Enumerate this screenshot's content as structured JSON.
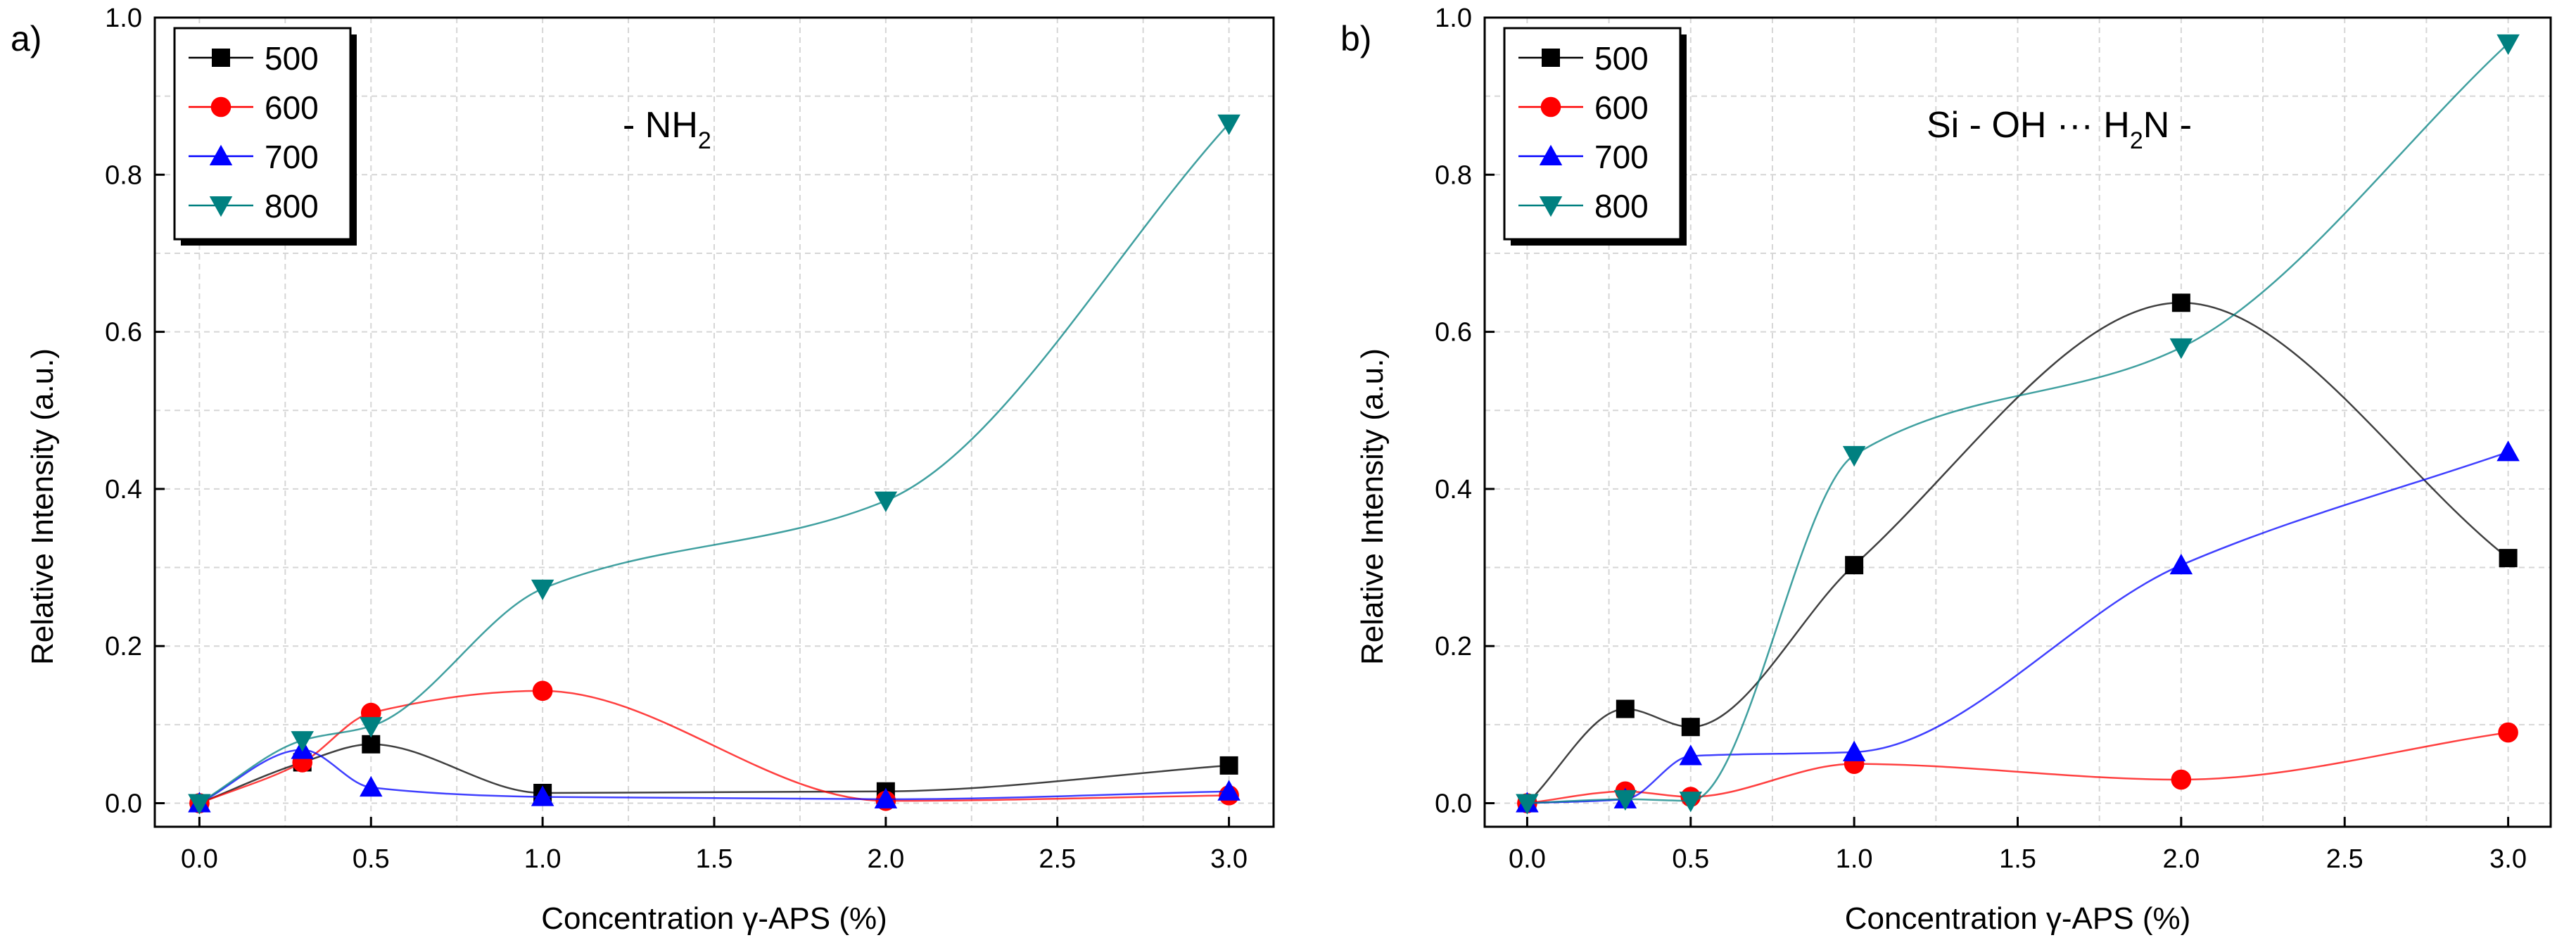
{
  "chart_data": [
    {
      "type": "scatter",
      "panel_label": "a)",
      "annotation": {
        "main": "- NH",
        "sub": "2",
        "tail": ""
      },
      "xlabel": "Concentration γ-APS (%)",
      "ylabel": "Relative Intensity (a.u.)",
      "xlim": [
        -0.13,
        3.13
      ],
      "ylim": [
        -0.03,
        1.0
      ],
      "xticks": [
        "0.0",
        "0.5",
        "1.0",
        "1.5",
        "2.0",
        "2.5",
        "3.0"
      ],
      "yticks": [
        "0.0",
        "0.2",
        "0.4",
        "0.6",
        "0.8",
        "1.0"
      ],
      "grid": true,
      "legend_position": "top-left",
      "x": [
        0,
        0.3,
        0.5,
        1.0,
        2.0,
        3.0
      ],
      "series": [
        {
          "name": "500",
          "color": "#000000",
          "marker": "square",
          "values": [
            0.0,
            0.052,
            0.075,
            0.013,
            0.015,
            0.048
          ]
        },
        {
          "name": "600",
          "color": "#ff0000",
          "marker": "circle",
          "values": [
            0.0,
            0.052,
            0.115,
            0.143,
            0.003,
            0.01
          ]
        },
        {
          "name": "700",
          "color": "#0000ff",
          "marker": "triangle-up",
          "values": [
            0.0,
            0.068,
            0.02,
            0.008,
            0.005,
            0.015
          ]
        },
        {
          "name": "800",
          "color": "#008080",
          "marker": "triangle-down",
          "values": [
            0.0,
            0.08,
            0.098,
            0.273,
            0.385,
            0.865
          ]
        }
      ]
    },
    {
      "type": "scatter",
      "panel_label": "b)",
      "annotation": {
        "main": "Si - OH ··· H",
        "sub": "2",
        "tail": "N -"
      },
      "xlabel": "Concentration γ-APS (%)",
      "ylabel": "Relative Intensity (a.u.)",
      "xlim": [
        -0.13,
        3.13
      ],
      "ylim": [
        -0.03,
        1.0
      ],
      "xticks": [
        "0.0",
        "0.5",
        "1.0",
        "1.5",
        "2.0",
        "2.5",
        "3.0"
      ],
      "yticks": [
        "0.0",
        "0.2",
        "0.4",
        "0.6",
        "0.8",
        "1.0"
      ],
      "grid": true,
      "legend_position": "top-left",
      "x": [
        0,
        0.3,
        0.5,
        1.0,
        2.0,
        3.0
      ],
      "series": [
        {
          "name": "500",
          "color": "#000000",
          "marker": "square",
          "values": [
            0.0,
            0.12,
            0.097,
            0.303,
            0.637,
            0.312
          ]
        },
        {
          "name": "600",
          "color": "#ff0000",
          "marker": "circle",
          "values": [
            0.0,
            0.015,
            0.008,
            0.05,
            0.03,
            0.09
          ]
        },
        {
          "name": "700",
          "color": "#0000ff",
          "marker": "triangle-up",
          "values": [
            0.0,
            0.005,
            0.06,
            0.065,
            0.303,
            0.447
          ]
        },
        {
          "name": "800",
          "color": "#008080",
          "marker": "triangle-down",
          "values": [
            0.0,
            0.005,
            0.003,
            0.443,
            0.58,
            0.967
          ]
        }
      ]
    }
  ]
}
